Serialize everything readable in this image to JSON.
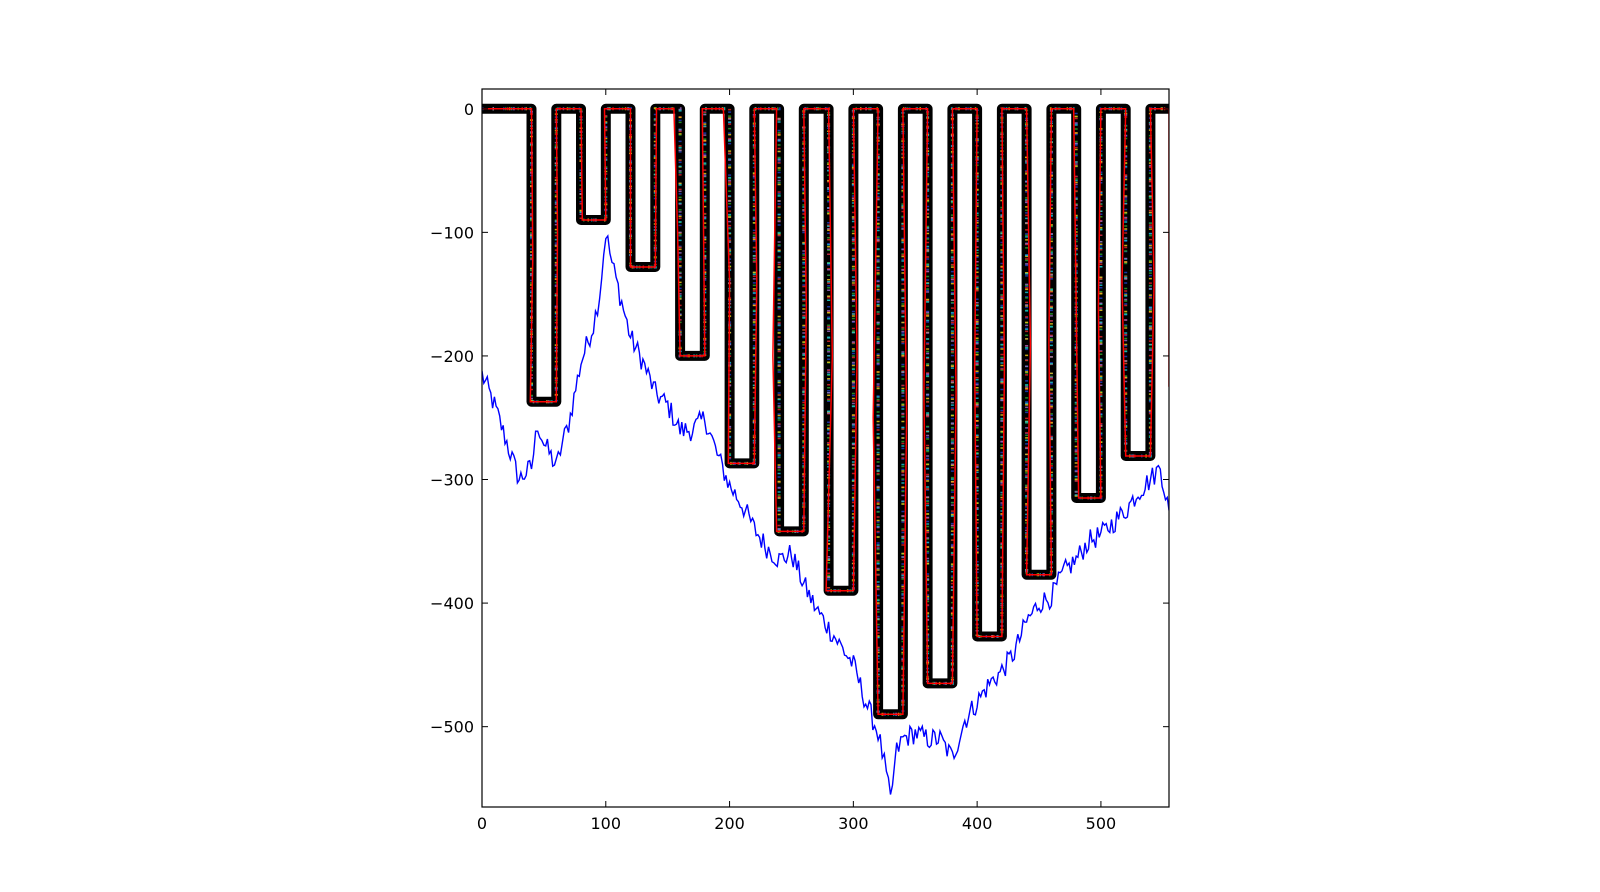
{
  "chart_data": {
    "type": "line",
    "title": "",
    "xlabel": "",
    "ylabel": "",
    "xlim": [
      0,
      555
    ],
    "ylim": [
      -565,
      16
    ],
    "x_ticks": [
      {
        "value": 0,
        "label": "0"
      },
      {
        "value": 100,
        "label": "100"
      },
      {
        "value": 200,
        "label": "200"
      },
      {
        "value": 300,
        "label": "300"
      },
      {
        "value": 400,
        "label": "400"
      },
      {
        "value": 500,
        "label": "500"
      }
    ],
    "y_ticks": [
      {
        "value": 0,
        "label": "0"
      },
      {
        "value": -100,
        "label": "−100"
      },
      {
        "value": -200,
        "label": "−200"
      },
      {
        "value": -300,
        "label": "−300"
      },
      {
        "value": -400,
        "label": "−400"
      },
      {
        "value": -500,
        "label": "−500"
      }
    ],
    "grid": false,
    "legend": "none",
    "series": [
      {
        "color": "#000000",
        "style": "thick serpentine path with dense multicolor markers",
        "points": [
          [
            0,
            0
          ],
          [
            40,
            0
          ],
          [
            40,
            -237
          ],
          [
            60,
            -237
          ],
          [
            60,
            0
          ],
          [
            80,
            0
          ],
          [
            80,
            -90
          ],
          [
            100,
            -90
          ],
          [
            100,
            0
          ],
          [
            120,
            0
          ],
          [
            120,
            -128
          ],
          [
            140,
            -128
          ],
          [
            140,
            0
          ],
          [
            160,
            0
          ],
          [
            160,
            -200
          ],
          [
            180,
            -200
          ],
          [
            180,
            0
          ],
          [
            200,
            0
          ],
          [
            200,
            -287
          ],
          [
            220,
            -287
          ],
          [
            220,
            0
          ],
          [
            240,
            0
          ],
          [
            240,
            -342
          ],
          [
            260,
            -342
          ],
          [
            260,
            0
          ],
          [
            280,
            0
          ],
          [
            280,
            -390
          ],
          [
            300,
            -390
          ],
          [
            300,
            0
          ],
          [
            320,
            0
          ],
          [
            320,
            -490
          ],
          [
            340,
            -490
          ],
          [
            340,
            0
          ],
          [
            360,
            0
          ],
          [
            360,
            -465
          ],
          [
            380,
            -465
          ],
          [
            380,
            0
          ],
          [
            400,
            0
          ],
          [
            400,
            -427
          ],
          [
            420,
            -427
          ],
          [
            420,
            0
          ],
          [
            440,
            0
          ],
          [
            440,
            -377
          ],
          [
            460,
            -377
          ],
          [
            460,
            0
          ],
          [
            480,
            0
          ],
          [
            480,
            -315
          ],
          [
            500,
            -315
          ],
          [
            500,
            0
          ],
          [
            520,
            0
          ],
          [
            520,
            -281
          ],
          [
            540,
            -281
          ],
          [
            540,
            0
          ],
          [
            555,
            0
          ]
        ]
      },
      {
        "color": "#ff0000",
        "style": "thin line overlaid on serpentine path",
        "points": [
          [
            0,
            0
          ],
          [
            40,
            0
          ],
          [
            41,
            -120
          ],
          [
            39,
            -237
          ],
          [
            60,
            -237
          ],
          [
            61,
            -100
          ],
          [
            60,
            0
          ],
          [
            80,
            0
          ],
          [
            81,
            -90
          ],
          [
            100,
            -90
          ],
          [
            99,
            0
          ],
          [
            120,
            0
          ],
          [
            120,
            -128
          ],
          [
            140,
            -128
          ],
          [
            141,
            0
          ],
          [
            155,
            0
          ],
          [
            158,
            -100
          ],
          [
            160,
            -200
          ],
          [
            180,
            -200
          ],
          [
            178,
            0
          ],
          [
            195,
            0
          ],
          [
            200,
            -140
          ],
          [
            199,
            -287
          ],
          [
            220,
            -287
          ],
          [
            222,
            -140
          ],
          [
            220,
            0
          ],
          [
            238,
            0
          ],
          [
            235,
            -200
          ],
          [
            238,
            -342
          ],
          [
            260,
            -342
          ],
          [
            262,
            -160
          ],
          [
            260,
            0
          ],
          [
            280,
            0
          ],
          [
            283,
            -200
          ],
          [
            278,
            -390
          ],
          [
            300,
            -390
          ],
          [
            303,
            -200
          ],
          [
            300,
            0
          ],
          [
            320,
            0
          ],
          [
            316,
            -250
          ],
          [
            320,
            -490
          ],
          [
            340,
            -490
          ],
          [
            343,
            -250
          ],
          [
            340,
            0
          ],
          [
            360,
            0
          ],
          [
            357,
            -230
          ],
          [
            360,
            -465
          ],
          [
            380,
            -465
          ],
          [
            383,
            -230
          ],
          [
            380,
            0
          ],
          [
            400,
            0
          ],
          [
            398,
            -210
          ],
          [
            400,
            -427
          ],
          [
            420,
            -427
          ],
          [
            422,
            -210
          ],
          [
            420,
            0
          ],
          [
            440,
            0
          ],
          [
            443,
            -190
          ],
          [
            440,
            -377
          ],
          [
            460,
            -377
          ],
          [
            458,
            -190
          ],
          [
            460,
            0
          ],
          [
            478,
            0
          ],
          [
            480,
            -160
          ],
          [
            482,
            -315
          ],
          [
            500,
            -315
          ],
          [
            498,
            -160
          ],
          [
            500,
            0
          ],
          [
            520,
            0
          ],
          [
            517,
            -140
          ],
          [
            520,
            -281
          ],
          [
            540,
            -281
          ],
          [
            543,
            -140
          ],
          [
            540,
            0
          ],
          [
            555,
            0
          ],
          [
            555,
            -225
          ]
        ]
      },
      {
        "color": "#0000ff",
        "style": "noisy thin line",
        "points": [
          [
            0,
            -215
          ],
          [
            10,
            -240
          ],
          [
            20,
            -270
          ],
          [
            30,
            -300
          ],
          [
            40,
            -290
          ],
          [
            45,
            -255
          ],
          [
            50,
            -270
          ],
          [
            60,
            -290
          ],
          [
            65,
            -270
          ],
          [
            70,
            -255
          ],
          [
            80,
            -205
          ],
          [
            90,
            -175
          ],
          [
            95,
            -150
          ],
          [
            100,
            -100
          ],
          [
            105,
            -125
          ],
          [
            110,
            -145
          ],
          [
            120,
            -185
          ],
          [
            130,
            -205
          ],
          [
            140,
            -230
          ],
          [
            150,
            -240
          ],
          [
            160,
            -260
          ],
          [
            170,
            -260
          ],
          [
            180,
            -250
          ],
          [
            190,
            -280
          ],
          [
            200,
            -305
          ],
          [
            210,
            -320
          ],
          [
            220,
            -340
          ],
          [
            230,
            -355
          ],
          [
            240,
            -365
          ],
          [
            250,
            -360
          ],
          [
            260,
            -385
          ],
          [
            270,
            -405
          ],
          [
            280,
            -420
          ],
          [
            290,
            -435
          ],
          [
            300,
            -450
          ],
          [
            310,
            -480
          ],
          [
            320,
            -505
          ],
          [
            325,
            -530
          ],
          [
            330,
            -560
          ],
          [
            335,
            -520
          ],
          [
            340,
            -510
          ],
          [
            350,
            -505
          ],
          [
            360,
            -510
          ],
          [
            370,
            -510
          ],
          [
            380,
            -525
          ],
          [
            390,
            -495
          ],
          [
            400,
            -480
          ],
          [
            410,
            -465
          ],
          [
            420,
            -455
          ],
          [
            430,
            -440
          ],
          [
            440,
            -415
          ],
          [
            450,
            -400
          ],
          [
            460,
            -395
          ],
          [
            470,
            -375
          ],
          [
            480,
            -365
          ],
          [
            490,
            -350
          ],
          [
            500,
            -345
          ],
          [
            510,
            -335
          ],
          [
            520,
            -325
          ],
          [
            530,
            -310
          ],
          [
            540,
            -300
          ],
          [
            548,
            -290
          ],
          [
            555,
            -325
          ]
        ]
      }
    ]
  }
}
